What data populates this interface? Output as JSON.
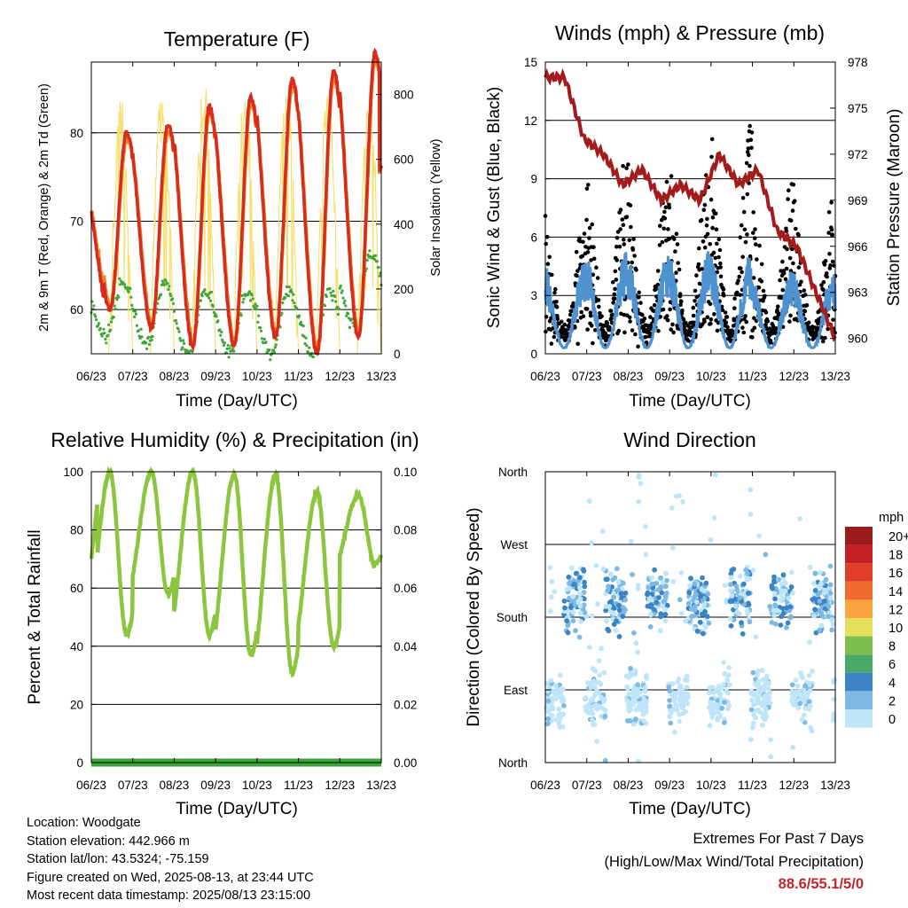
{
  "charts": {
    "temperature": {
      "title": "Temperature (F)",
      "xlabel": "Time (Day/UTC)",
      "ylabel_left": "2m & 9m T (Red, Orange) & 2m Td (Green)",
      "ylabel_right": "Solar Insolation (Yellow)",
      "xticks": [
        "06/23",
        "07/23",
        "08/23",
        "09/23",
        "10/23",
        "11/23",
        "12/23",
        "13/23"
      ],
      "yticks_left": [
        "60",
        "70",
        "80"
      ],
      "yticks_right": [
        "0",
        "200",
        "400",
        "600",
        "800"
      ]
    },
    "winds": {
      "title": "Winds (mph) & Pressure (mb)",
      "xlabel": "Time (Day/UTC)",
      "ylabel_left": "Sonic Wind & Gust (Blue, Black)",
      "ylabel_right": "Station Pressure (Maroon)",
      "xticks": [
        "06/23",
        "07/23",
        "08/23",
        "09/23",
        "10/23",
        "11/23",
        "12/23",
        "13/23"
      ],
      "yticks_left": [
        "0",
        "3",
        "6",
        "9",
        "12",
        "15"
      ],
      "yticks_right": [
        "960",
        "963",
        "966",
        "969",
        "972",
        "975",
        "978"
      ]
    },
    "humidity": {
      "title": "Relative Humidity (%) & Precipitation (in)",
      "xlabel": "Time (Day/UTC)",
      "ylabel_left": "Percent & Total Rainfall",
      "xticks": [
        "06/23",
        "07/23",
        "08/23",
        "09/23",
        "10/23",
        "11/23",
        "12/23",
        "13/23"
      ],
      "yticks_left": [
        "0",
        "20",
        "40",
        "60",
        "80",
        "100"
      ],
      "yticks_right": [
        "0.00",
        "0.02",
        "0.04",
        "0.06",
        "0.08",
        "0.10"
      ]
    },
    "direction": {
      "title": "Wind Direction",
      "xlabel": "Time (Day/UTC)",
      "ylabel_left": "Direction (Colored By Speed)",
      "xticks": [
        "06/23",
        "07/23",
        "08/23",
        "09/23",
        "10/23",
        "11/23",
        "12/23",
        "13/23"
      ],
      "yticks_left": [
        "North",
        "East",
        "South",
        "West",
        "North"
      ],
      "legend_title": "mph",
      "legend_labels": [
        "20+",
        "18",
        "16",
        "14",
        "12",
        "10",
        "8",
        "6",
        "4",
        "2",
        "0"
      ],
      "legend_colors": [
        "#9b1c1c",
        "#c41f24",
        "#e03d2a",
        "#f26b2e",
        "#f9a43f",
        "#e6df5d",
        "#7cbf4d",
        "#4aa867",
        "#3b83c4",
        "#7eb9e3",
        "#bfe6f8"
      ]
    }
  },
  "chart_data": [
    {
      "type": "line",
      "panel": "temperature",
      "x_days": [
        6,
        7,
        8,
        9,
        10,
        11,
        12,
        13
      ],
      "ylim": [
        55,
        88
      ],
      "ylim_right": [
        0,
        900
      ],
      "daily_max_2m_T": [
        80,
        81,
        83,
        84,
        86,
        87,
        89
      ],
      "daily_min_2m_T": [
        60,
        58,
        56,
        56,
        57,
        55,
        57
      ],
      "daily_max_Td": [
        63,
        63,
        62,
        62,
        62,
        62,
        66
      ],
      "daily_min_Td": [
        57,
        56,
        55,
        55,
        55,
        55,
        58
      ],
      "daily_peak_insolation": [
        800,
        870,
        860,
        850,
        840,
        850,
        860
      ],
      "series": [
        {
          "name": "2m T",
          "color": "#d62c1e"
        },
        {
          "name": "9m T",
          "color": "#f08522"
        },
        {
          "name": "2m Td",
          "color": "#3ea63a"
        },
        {
          "name": "Solar Insolation",
          "color": "#f4e06a"
        }
      ]
    },
    {
      "type": "scatter",
      "panel": "winds",
      "ylim": [
        0,
        15
      ],
      "ylim_right": [
        959,
        978
      ],
      "daily_peak_gust": [
        8,
        11,
        10,
        11,
        13,
        10,
        9
      ],
      "daily_peak_wind": [
        4.5,
        5,
        5,
        5,
        5,
        4,
        4
      ],
      "pressure_mb": [
        977,
        977,
        973,
        972,
        970,
        971,
        969,
        970,
        969,
        972,
        970,
        971,
        967,
        966,
        963,
        960
      ],
      "series": [
        {
          "name": "Sonic Wind",
          "color": "#4f92d0"
        },
        {
          "name": "Gust",
          "color": "#000000"
        },
        {
          "name": "Station Pressure",
          "color": "#a31b1b"
        }
      ]
    },
    {
      "type": "line",
      "panel": "humidity",
      "ylim": [
        0,
        100
      ],
      "ylim_right": [
        0,
        0.1
      ],
      "daily_max_rh": [
        100,
        100,
        100,
        99,
        99,
        93,
        92
      ],
      "daily_min_rh": [
        44,
        58,
        44,
        37,
        31,
        40,
        68
      ],
      "total_precipitation": [
        0,
        0,
        0,
        0,
        0,
        0,
        0,
        0
      ],
      "series": [
        {
          "name": "Relative Humidity",
          "color": "#8cc63f"
        },
        {
          "name": "Total Rainfall",
          "color": "#3aa33a"
        }
      ]
    },
    {
      "type": "scatter",
      "panel": "direction",
      "ylim": [
        "North",
        "East",
        "South",
        "West",
        "North"
      ],
      "note_encoding": "points colored by wind speed (mph) per legend"
    }
  ],
  "info": {
    "location": "Location: Woodgate",
    "elevation": "Station elevation: 442.966 m",
    "latlon": "Station lat/lon: 43.5324; -75.159",
    "created": "Figure created on Wed, 2025-08-13, at 23:44 UTC",
    "timestamp": "Most recent data timestamp: 2025/08/13 23:15:00"
  },
  "extremes": {
    "title": "Extremes For Past 7 Days",
    "subtitle": "(High/Low/Max Wind/Total Precipitation)",
    "values": "88.6/55.1/5/0"
  }
}
